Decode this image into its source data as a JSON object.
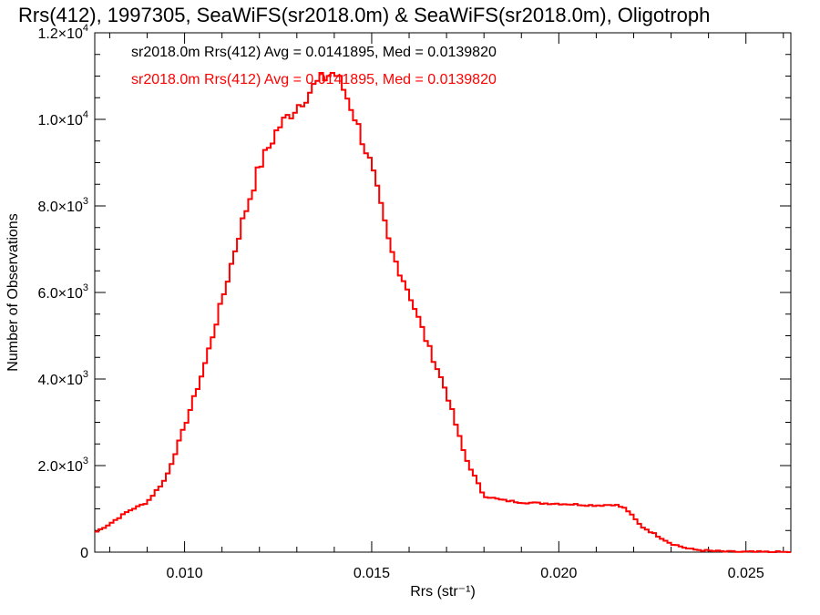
{
  "chart_data": {
    "type": "line",
    "title": "Rrs(412), 1997305, SeaWiFS(sr2018.0m) & SeaWiFS(sr2018.0m), Oligotroph",
    "xlabel": "Rrs (str⁻¹)",
    "ylabel": "Number of Observations",
    "xlim": [
      0.0076,
      0.0262
    ],
    "ylim": [
      0,
      12000
    ],
    "x_tick_labels": [
      "0.010",
      "0.015",
      "0.020",
      "0.025"
    ],
    "x_ticks": [
      0.01,
      0.015,
      0.02,
      0.025
    ],
    "y_tick_labels": [
      {
        "mantissa": "0",
        "exp": ""
      },
      {
        "mantissa": "2.0×10",
        "exp": "3"
      },
      {
        "mantissa": "4.0×10",
        "exp": "3"
      },
      {
        "mantissa": "6.0×10",
        "exp": "3"
      },
      {
        "mantissa": "8.0×10",
        "exp": "3"
      },
      {
        "mantissa": "1.0×10",
        "exp": "4"
      },
      {
        "mantissa": "1.2×10",
        "exp": "4"
      }
    ],
    "y_ticks": [
      0,
      2000,
      4000,
      6000,
      8000,
      10000,
      12000
    ],
    "legend_placement": "top-left",
    "series": [
      {
        "name": "sr2018.0m Rrs(412) Avg = 0.0141895, Med = 0.0139820",
        "color": "#000000",
        "x": [
          0.0076,
          0.008,
          0.0085,
          0.009,
          0.0095,
          0.01,
          0.0105,
          0.011,
          0.0115,
          0.012,
          0.0125,
          0.013,
          0.0135,
          0.0138,
          0.014,
          0.0142,
          0.0145,
          0.015,
          0.0155,
          0.016,
          0.0165,
          0.017,
          0.0175,
          0.018,
          0.0185,
          0.019,
          0.0195,
          0.02,
          0.0205,
          0.021,
          0.0215,
          0.0218,
          0.0222,
          0.0225,
          0.023,
          0.0235,
          0.024,
          0.0245,
          0.025,
          0.0262
        ],
        "y": [
          450,
          650,
          950,
          1150,
          1700,
          2900,
          4200,
          5800,
          7500,
          8900,
          9800,
          10300,
          10800,
          11000,
          11100,
          10800,
          10200,
          8900,
          7000,
          6000,
          4800,
          3700,
          2200,
          1300,
          1200,
          1150,
          1130,
          1120,
          1100,
          1080,
          1100,
          1000,
          600,
          450,
          200,
          70,
          30,
          10,
          5,
          0
        ]
      },
      {
        "name": "sr2018.0m Rrs(412) Avg = 0.0141895, Med = 0.0139820",
        "color": "#ff0000",
        "x": [
          0.0076,
          0.008,
          0.0085,
          0.009,
          0.0095,
          0.01,
          0.0105,
          0.011,
          0.0115,
          0.012,
          0.0125,
          0.013,
          0.0135,
          0.0138,
          0.014,
          0.0142,
          0.0145,
          0.015,
          0.0155,
          0.016,
          0.0165,
          0.017,
          0.0175,
          0.018,
          0.0185,
          0.019,
          0.0195,
          0.02,
          0.0205,
          0.021,
          0.0215,
          0.0218,
          0.0222,
          0.0225,
          0.023,
          0.0235,
          0.024,
          0.0245,
          0.025,
          0.0262
        ],
        "y": [
          450,
          650,
          950,
          1150,
          1700,
          2900,
          4200,
          5800,
          7500,
          8900,
          9800,
          10300,
          10800,
          11000,
          11100,
          10800,
          10200,
          8900,
          7000,
          6000,
          4800,
          3700,
          2200,
          1300,
          1200,
          1150,
          1130,
          1120,
          1100,
          1080,
          1100,
          1000,
          600,
          450,
          200,
          70,
          30,
          10,
          5,
          0
        ]
      }
    ]
  }
}
